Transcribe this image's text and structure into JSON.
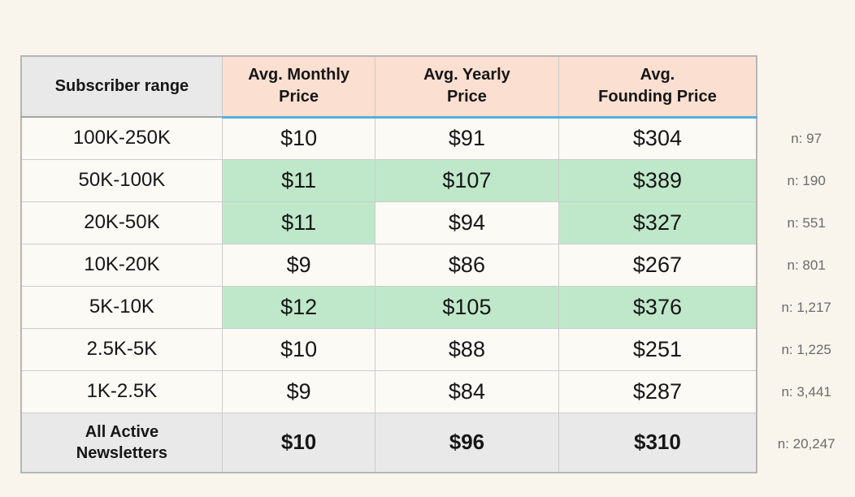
{
  "chart_data": {
    "type": "table",
    "columns": [
      "Subscriber range",
      "Avg. Monthly Price",
      "Avg. Yearly Price",
      "Avg. Founding Price"
    ],
    "header_lines": {
      "col1": [
        "Subscriber range"
      ],
      "col2": [
        "Avg. Monthly",
        "Price"
      ],
      "col3": [
        "Avg. Yearly",
        "Price"
      ],
      "col4": [
        "Avg.",
        "Founding Price"
      ]
    },
    "rows": [
      {
        "range": "100K-250K",
        "monthly": "$10",
        "yearly": "$91",
        "founding": "$304",
        "n": "n: 97",
        "highlights": [
          false,
          false,
          false
        ]
      },
      {
        "range": "50K-100K",
        "monthly": "$11",
        "yearly": "$107",
        "founding": "$389",
        "n": "n: 190",
        "highlights": [
          true,
          true,
          true
        ]
      },
      {
        "range": "20K-50K",
        "monthly": "$11",
        "yearly": "$94",
        "founding": "$327",
        "n": "n: 551",
        "highlights": [
          true,
          false,
          true
        ]
      },
      {
        "range": "10K-20K",
        "monthly": "$9",
        "yearly": "$86",
        "founding": "$267",
        "n": "n: 801",
        "highlights": [
          false,
          false,
          false
        ]
      },
      {
        "range": "5K-10K",
        "monthly": "$12",
        "yearly": "$105",
        "founding": "$376",
        "n": "n: 1,217",
        "highlights": [
          true,
          true,
          true
        ]
      },
      {
        "range": "2.5K-5K",
        "monthly": "$10",
        "yearly": "$88",
        "founding": "$251",
        "n": "n: 1,225",
        "highlights": [
          false,
          false,
          false
        ]
      },
      {
        "range": "1K-2.5K",
        "monthly": "$9",
        "yearly": "$84",
        "founding": "$287",
        "n": "n: 3,441",
        "highlights": [
          false,
          false,
          false
        ]
      }
    ],
    "total": {
      "label_lines": [
        "All Active",
        "Newsletters"
      ],
      "monthly": "$10",
      "yearly": "$96",
      "founding": "$310",
      "n": "n: 20,247"
    }
  },
  "colors": {
    "page_background": "#f9f5ec",
    "cell_background": "#fbfaf5",
    "header_grey": "#e9e9e9",
    "header_peach": "#fbdfd0",
    "highlight_green": "#bfe8ca",
    "accent_blue": "#57aedf",
    "border": "#cccccc",
    "n_text": "#6b6b6b"
  }
}
